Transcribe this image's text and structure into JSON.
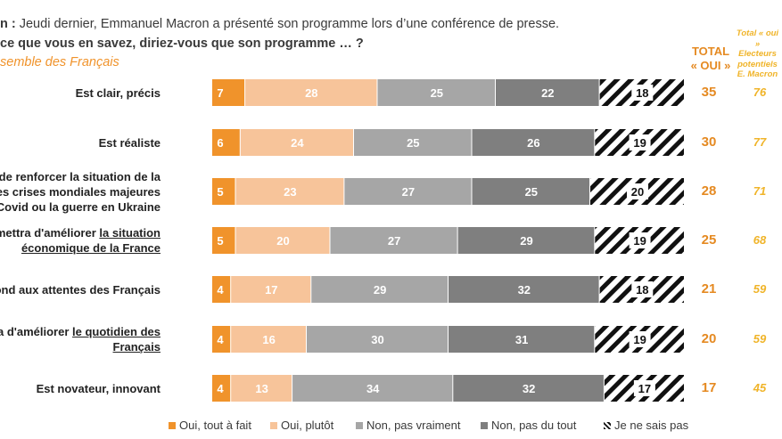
{
  "header": {
    "line1_bold": "n :",
    "line1_rest": " Jeudi dernier, Emmanuel Macron a présenté son programme lors d’une conférence de presse.",
    "line2": "ce que vous en savez, diriez-vous que son programme … ?",
    "line3": "semble des Français"
  },
  "columns": {
    "total_line1": "TOTAL",
    "total_line2": "« OUI »",
    "electeurs_l1": "Total « oui »",
    "electeurs_l2": "Electeurs",
    "electeurs_l3": "potentiels",
    "electeurs_l4": "E. Macron"
  },
  "rows": [
    {
      "label_lines": [
        "Est clair, précis"
      ],
      "total": "35",
      "electeurs": "76"
    },
    {
      "label_lines": [
        "Est réaliste"
      ],
      "total": "30",
      "electeurs": "77"
    },
    {
      "label_lines": [
        "de renforcer la situation de la",
        "des crises mondiales majeures",
        "Covid ou la guerre en Ukraine"
      ],
      "total": "28",
      "electeurs": "71"
    },
    {
      "label_lines": [
        "mettra d'améliorer la situation",
        "économique de la France"
      ],
      "total": "25",
      "electeurs": "68"
    },
    {
      "label_lines": [
        "pond aux attentes des Français"
      ],
      "total": "21",
      "electeurs": "59"
    },
    {
      "label_lines": [
        "a d'améliorer le quotidien des",
        "Français"
      ],
      "total": "20",
      "electeurs": "59"
    },
    {
      "label_lines": [
        "Est novateur, innovant"
      ],
      "total": "17",
      "electeurs": "45"
    }
  ],
  "chart_data": {
    "type": "bar",
    "orientation": "horizontal",
    "stacked": true,
    "categories": [
      "Est clair, précis",
      "Est réaliste",
      "de renforcer la situation de la des crises mondiales majeures Covid ou la guerre en Ukraine",
      "mettra d'améliorer la situation économique de la France",
      "pond aux attentes des Français",
      "a d'améliorer le quotidien des Français",
      "Est novateur, innovant"
    ],
    "series": [
      {
        "name": "Oui, tout à fait",
        "color": "#f0932b",
        "values": [
          7,
          6,
          5,
          5,
          4,
          4,
          4
        ]
      },
      {
        "name": "Oui, plutôt",
        "color": "#f7c49a",
        "values": [
          28,
          24,
          23,
          20,
          17,
          16,
          13
        ]
      },
      {
        "name": "Non, pas vraiment",
        "color": "#a6a6a6",
        "values": [
          25,
          25,
          27,
          27,
          29,
          30,
          34
        ]
      },
      {
        "name": "Non, pas du tout",
        "color": "#7f7f7f",
        "values": [
          22,
          26,
          25,
          29,
          32,
          31,
          32
        ]
      },
      {
        "name": "Je ne sais pas",
        "color": "hatched",
        "values": [
          18,
          19,
          20,
          19,
          18,
          19,
          17
        ]
      }
    ],
    "legend_position": "bottom"
  }
}
